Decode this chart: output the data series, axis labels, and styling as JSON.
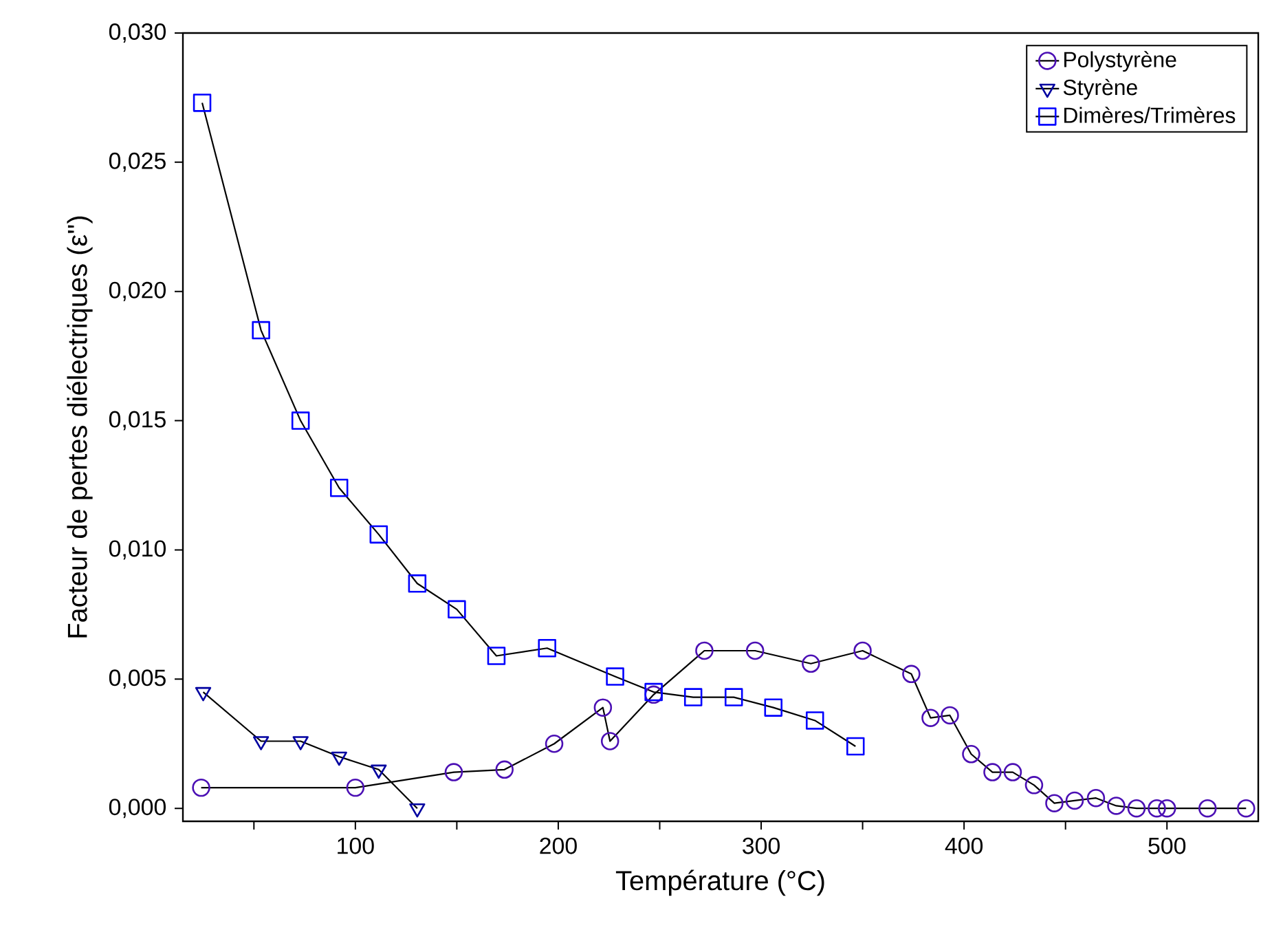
{
  "chart_data": {
    "type": "line",
    "xlabel": "Température (°C)",
    "ylabel": "Facteur de pertes diélectriques (ε'')",
    "xlim": [
      15,
      545
    ],
    "ylim": [
      -0.0005,
      0.03
    ],
    "xticks": [
      {
        "value": 50,
        "label": null
      },
      100,
      {
        "value": 150,
        "label": null
      },
      200,
      {
        "value": 250,
        "label": null
      },
      300,
      {
        "value": 350,
        "label": null
      },
      400,
      {
        "value": 450,
        "label": null
      },
      500
    ],
    "yticks": [
      {
        "value": 0,
        "label": "0,000"
      },
      {
        "value": 0.005,
        "label": "0,005"
      },
      {
        "value": 0.01,
        "label": "0,010"
      },
      {
        "value": 0.015,
        "label": "0,015"
      },
      {
        "value": 0.02,
        "label": "0,020"
      },
      {
        "value": 0.025,
        "label": "0,025"
      },
      {
        "value": 0.03,
        "label": "0,030"
      }
    ],
    "legend": "top right",
    "grid": false,
    "line_style": "solid",
    "series": [
      {
        "name": "Polystyrène",
        "color": "#4b0fb4",
        "marker": "circle",
        "x": [
          24,
          100,
          148.5,
          173.5,
          198,
          222,
          225.5,
          247,
          272,
          297,
          324.5,
          350,
          374,
          383.5,
          393,
          403.5,
          414,
          424,
          434.5,
          444.5,
          454.5,
          465,
          475,
          485,
          495,
          500,
          520,
          539
        ],
        "values": [
          0.0008,
          0.0008,
          0.0014,
          0.0015,
          0.0025,
          0.0039,
          0.0026,
          0.0044,
          0.0061,
          0.0061,
          0.0056,
          0.0061,
          0.0052,
          0.0035,
          0.0036,
          0.0021,
          0.0014,
          0.0014,
          0.0009,
          0.0002,
          0.0003,
          0.0004,
          0.0001,
          0.0,
          0.0,
          0.0,
          0.0,
          0.0
        ]
      },
      {
        "name": "Styrène",
        "color": "#0000a0",
        "marker": "triangle",
        "x": [
          25,
          53.5,
          73,
          92,
          111.5,
          130.5
        ],
        "values": [
          0.0045,
          0.0026,
          0.0026,
          0.002,
          0.0015,
          0.0
        ]
      },
      {
        "name": "Dimères/Trimères",
        "color": "#0000ff",
        "marker": "square",
        "x": [
          24.5,
          53.5,
          73,
          92,
          111.5,
          130.5,
          150,
          169.5,
          194.5,
          228,
          247,
          266.5,
          286.5,
          306,
          326.5,
          346.5
        ],
        "values": [
          0.0273,
          0.0185,
          0.015,
          0.0124,
          0.0106,
          0.0087,
          0.0077,
          0.0059,
          0.0062,
          0.0051,
          0.0045,
          0.0043,
          0.0043,
          0.0039,
          0.0034,
          0.0024
        ]
      }
    ]
  }
}
